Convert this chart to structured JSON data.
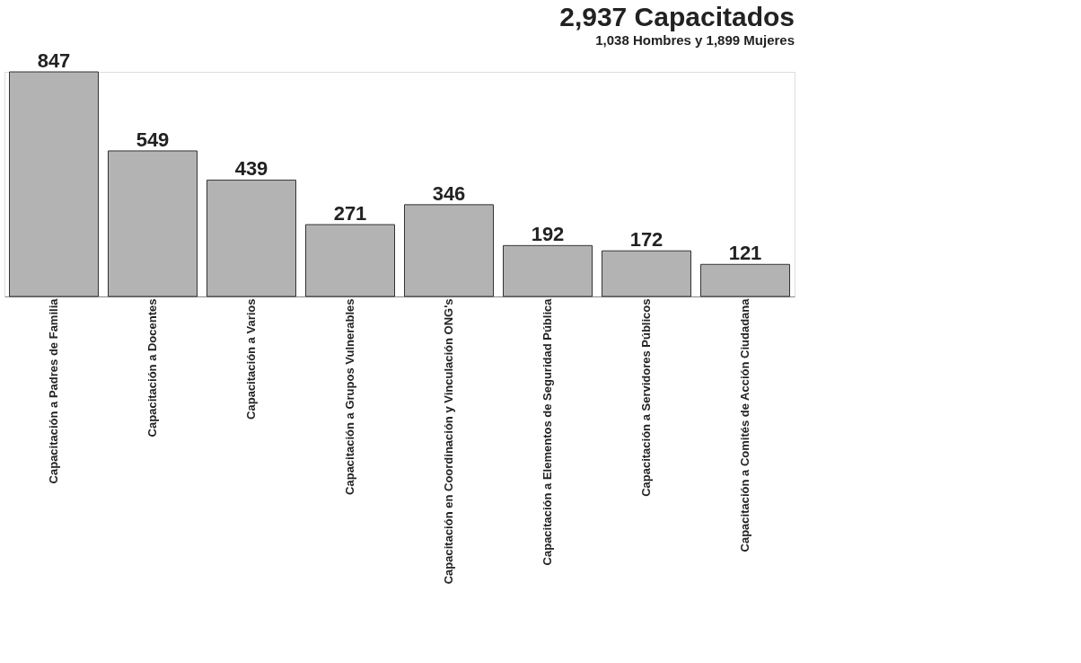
{
  "chart_data": {
    "type": "bar",
    "title": "2,937 Capacitados",
    "subtitle": "1,038 Hombres y 1,899 Mujeres",
    "categories": [
      "Capacitación a Padres de Familia",
      "Capacitación a Docentes",
      "Capacitación a Varios",
      "Capacitación a Grupos Vulnerables",
      "Capacitación en Coordinación y Vinculación ONG's",
      "Capacitación a Elementos de Seguridad Pública",
      "Capacitación a Servidores Públicos",
      "Capacitación a Comités de Acción Ciudadana"
    ],
    "values": [
      847,
      549,
      439,
      271,
      346,
      192,
      172,
      121
    ],
    "color": "#b3b3b3",
    "data_labels": true
  }
}
